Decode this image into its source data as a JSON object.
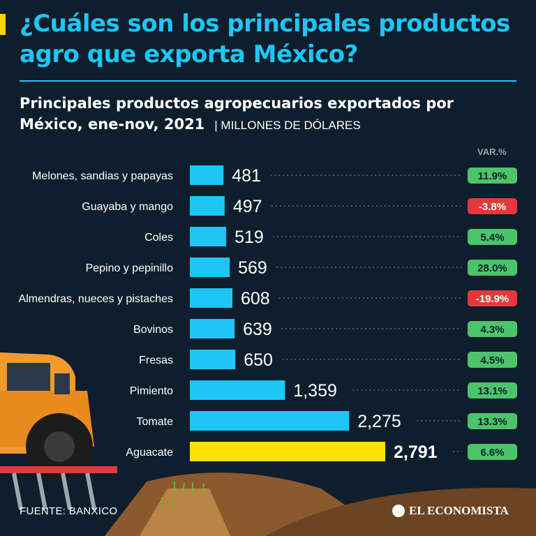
{
  "header": {
    "title": "¿Cuáles son los principales productos agro que exporta México?",
    "subtitle": "Principales productos agropecuarios exportados por México, ene-nov, 2021",
    "unit": "| MILLONES DE DÓLARES"
  },
  "var_header": "VAR.%",
  "chart_data": {
    "type": "bar",
    "orientation": "horizontal",
    "title": "Principales productos agropecuarios exportados por México, ene-nov, 2021",
    "unit": "Millones de dólares",
    "categories": [
      "Melones, sandias y papayas",
      "Guayaba y mango",
      "Coles",
      "Pepino y pepinillo",
      "Almendras, nueces y pistaches",
      "Bovinos",
      "Fresas",
      "Pimiento",
      "Tomate",
      "Aguacate"
    ],
    "values": [
      481,
      497,
      519,
      569,
      608,
      639,
      650,
      1359,
      2275,
      2791
    ],
    "value_labels": [
      "481",
      "497",
      "519",
      "569",
      "608",
      "639",
      "650",
      "1,359",
      "2,275",
      "2,791"
    ],
    "variation_pct": [
      "11.9%",
      "-3.8%",
      "5.4%",
      "28.0%",
      "-19.9%",
      "4.3%",
      "4.5%",
      "13.1%",
      "13.3%",
      "6.6%"
    ],
    "highlight": "Aguacate",
    "colors": {
      "bar": "#1dc6f5",
      "highlight": "#ffe000",
      "positive": "#4cc46a",
      "negative": "#e23a3a"
    },
    "xlim": [
      0,
      2791
    ]
  },
  "footer": {
    "source": "FUENTE: BANXICO",
    "brand": "EL ECONOMISTA"
  }
}
